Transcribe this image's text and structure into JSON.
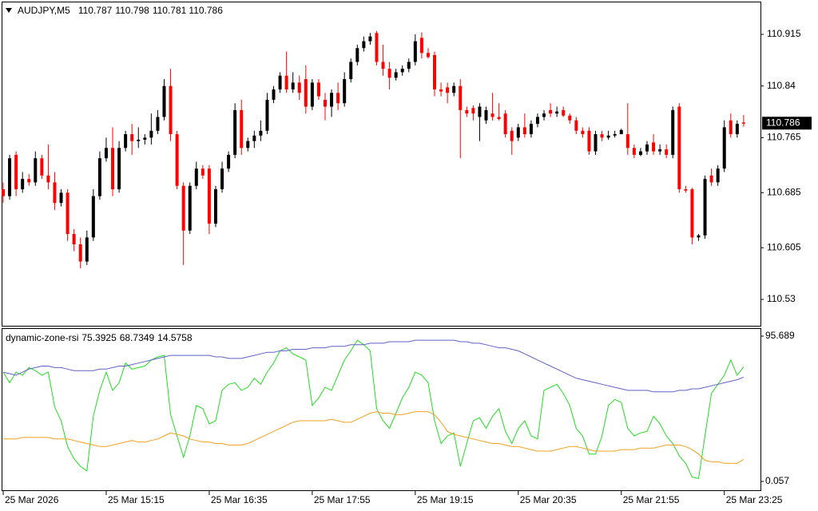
{
  "chart_data": [
    {
      "type": "candlestick",
      "title": "AUDJPY,M5",
      "ylim": [
        110.4917,
        110.9626
      ],
      "yticks": [
        110.53,
        110.605,
        110.685,
        110.765,
        110.84,
        110.915
      ],
      "xticks": [
        {
          "value": 0,
          "label": "25 Mar 2026"
        },
        {
          "value": 16,
          "label": "25 Mar 15:15"
        },
        {
          "value": 32,
          "label": "25 Mar 16:35"
        },
        {
          "value": 48,
          "label": "25 Mar 17:55"
        },
        {
          "value": 64,
          "label": "25 Mar 19:15"
        },
        {
          "value": 80,
          "label": "25 Mar 20:35"
        },
        {
          "value": 96,
          "label": "25 Mar 21:55"
        },
        {
          "value": 112,
          "label": "25 Mar 23:25"
        }
      ],
      "up_color": "#000000",
      "down_color": "#ff0000",
      "ohlc": [
        [
          110.69,
          110.7,
          110.67,
          110.68
        ],
        [
          110.68,
          110.74,
          110.675,
          110.735
        ],
        [
          110.74,
          110.745,
          110.68,
          110.69
        ],
        [
          110.69,
          110.715,
          110.685,
          110.705
        ],
        [
          110.705,
          110.712,
          110.695,
          110.7
        ],
        [
          110.7,
          110.745,
          110.695,
          110.735
        ],
        [
          110.735,
          110.74,
          110.705,
          110.71
        ],
        [
          110.71,
          110.755,
          110.69,
          110.7
        ],
        [
          110.7,
          110.715,
          110.66,
          110.67
        ],
        [
          110.67,
          110.69,
          110.665,
          110.685
        ],
        [
          110.685,
          110.69,
          110.615,
          110.625
        ],
        [
          110.625,
          110.632,
          110.6,
          110.61
        ],
        [
          110.61,
          110.62,
          110.575,
          110.585
        ],
        [
          110.585,
          110.63,
          110.58,
          110.62
        ],
        [
          110.62,
          110.69,
          110.615,
          110.68
        ],
        [
          110.68,
          110.745,
          110.675,
          110.735
        ],
        [
          110.735,
          110.765,
          110.73,
          110.75
        ],
        [
          110.75,
          110.78,
          110.68,
          110.69
        ],
        [
          110.69,
          110.76,
          110.685,
          110.75
        ],
        [
          110.75,
          110.775,
          110.745,
          110.77
        ],
        [
          110.77,
          110.785,
          110.74,
          110.76
        ],
        [
          110.76,
          110.78,
          110.75,
          110.762
        ],
        [
          110.762,
          110.77,
          110.755,
          110.765
        ],
        [
          110.765,
          110.8,
          110.755,
          110.775
        ],
        [
          110.775,
          110.805,
          110.77,
          110.795
        ],
        [
          110.795,
          110.85,
          110.79,
          110.84
        ],
        [
          110.84,
          110.865,
          110.76,
          110.77
        ],
        [
          110.77,
          110.775,
          110.69,
          110.695
        ],
        [
          110.695,
          110.7,
          110.58,
          110.63
        ],
        [
          110.63,
          110.7,
          110.625,
          110.695
        ],
        [
          110.695,
          110.73,
          110.69,
          110.72
        ],
        [
          110.72,
          110.725,
          110.705,
          110.71
        ],
        [
          110.72,
          110.725,
          110.625,
          110.64
        ],
        [
          110.64,
          110.695,
          110.635,
          110.69
        ],
        [
          110.69,
          110.73,
          110.685,
          110.72
        ],
        [
          110.72,
          110.745,
          110.715,
          110.74
        ],
        [
          110.74,
          110.815,
          110.735,
          110.805
        ],
        [
          110.805,
          110.82,
          110.74,
          110.75
        ],
        [
          110.75,
          110.765,
          110.745,
          110.76
        ],
        [
          110.76,
          110.775,
          110.75,
          110.768
        ],
        [
          110.768,
          110.79,
          110.76,
          110.775
        ],
        [
          110.775,
          110.83,
          110.77,
          110.82
        ],
        [
          110.82,
          110.84,
          110.815,
          110.835
        ],
        [
          110.835,
          110.86,
          110.83,
          110.855
        ],
        [
          110.855,
          110.89,
          110.83,
          110.835
        ],
        [
          110.835,
          110.86,
          110.83,
          110.845
        ],
        [
          110.845,
          110.855,
          110.82,
          110.83
        ],
        [
          110.85,
          110.87,
          110.8,
          110.81
        ],
        [
          110.81,
          110.85,
          110.805,
          110.845
        ],
        [
          110.845,
          110.85,
          110.82,
          110.825
        ],
        [
          110.82,
          110.83,
          110.79,
          110.81
        ],
        [
          110.81,
          110.835,
          110.795,
          110.83
        ],
        [
          110.83,
          110.845,
          110.805,
          110.815
        ],
        [
          110.815,
          110.86,
          110.81,
          110.85
        ],
        [
          110.85,
          110.88,
          110.845,
          110.875
        ],
        [
          110.875,
          110.9,
          110.87,
          110.895
        ],
        [
          110.895,
          110.912,
          110.89,
          110.905
        ],
        [
          110.905,
          110.917,
          110.9,
          110.912
        ],
        [
          110.917,
          110.92,
          110.87,
          110.875
        ],
        [
          110.875,
          110.9,
          110.855,
          110.865
        ],
        [
          110.865,
          110.875,
          110.835,
          110.852
        ],
        [
          110.852,
          110.865,
          110.848,
          110.86
        ],
        [
          110.86,
          110.87,
          110.855,
          110.865
        ],
        [
          110.865,
          110.88,
          110.86,
          110.875
        ],
        [
          110.875,
          110.915,
          110.87,
          110.905
        ],
        [
          110.91,
          110.918,
          110.88,
          110.888
        ],
        [
          110.888,
          110.895,
          110.88,
          110.882
        ],
        [
          110.885,
          110.89,
          110.825,
          110.835
        ],
        [
          110.835,
          110.845,
          110.825,
          110.832
        ],
        [
          110.838,
          110.845,
          110.815,
          110.83
        ],
        [
          110.83,
          110.845,
          110.825,
          110.84
        ],
        [
          110.84,
          110.85,
          110.735,
          110.805
        ],
        [
          110.805,
          110.81,
          110.795,
          110.8
        ],
        [
          110.808,
          110.812,
          110.79,
          110.8
        ],
        [
          110.795,
          110.815,
          110.76,
          110.81
        ],
        [
          110.79,
          110.81,
          110.785,
          110.805
        ],
        [
          110.8,
          110.83,
          110.79,
          110.795
        ],
        [
          110.795,
          110.815,
          110.79,
          110.792
        ],
        [
          110.8,
          110.805,
          110.765,
          110.77
        ],
        [
          110.775,
          110.78,
          110.74,
          110.76
        ],
        [
          110.765,
          110.785,
          110.76,
          110.78
        ],
        [
          110.78,
          110.8,
          110.765,
          110.77
        ],
        [
          110.77,
          110.79,
          110.765,
          110.785
        ],
        [
          110.785,
          110.8,
          110.78,
          110.795
        ],
        [
          110.795,
          110.805,
          110.79,
          110.8
        ],
        [
          110.805,
          110.815,
          110.795,
          110.8
        ],
        [
          110.8,
          110.81,
          110.795,
          110.803
        ],
        [
          110.805,
          110.81,
          110.795,
          110.797
        ],
        [
          110.797,
          110.8,
          110.785,
          110.79
        ],
        [
          110.79,
          110.795,
          110.77,
          110.775
        ],
        [
          110.775,
          110.78,
          110.765,
          110.77
        ],
        [
          110.775,
          110.78,
          110.74,
          110.745
        ],
        [
          110.745,
          110.775,
          110.74,
          110.77
        ],
        [
          110.77,
          110.775,
          110.76,
          110.765
        ],
        [
          110.765,
          110.775,
          110.762,
          110.768
        ],
        [
          110.768,
          110.775,
          110.765,
          110.77
        ],
        [
          110.77,
          110.778,
          110.77,
          110.776
        ],
        [
          110.77,
          110.815,
          110.74,
          110.75
        ],
        [
          110.75,
          110.755,
          110.735,
          110.74
        ],
        [
          110.74,
          110.75,
          110.738,
          110.745
        ],
        [
          110.745,
          110.76,
          110.74,
          110.755
        ],
        [
          110.758,
          110.77,
          110.74,
          110.745
        ],
        [
          110.745,
          110.755,
          110.74,
          110.748
        ],
        [
          110.748,
          110.755,
          110.735,
          110.74
        ],
        [
          110.74,
          110.81,
          110.735,
          110.805
        ],
        [
          110.81,
          110.815,
          110.685,
          110.69
        ],
        [
          110.69,
          110.695,
          110.685,
          110.688
        ],
        [
          110.69,
          110.692,
          110.61,
          110.62
        ],
        [
          110.62,
          110.625,
          110.615,
          110.623
        ],
        [
          110.623,
          110.71,
          110.618,
          110.705
        ],
        [
          110.71,
          110.72,
          110.695,
          110.7
        ],
        [
          110.7,
          110.725,
          110.695,
          110.72
        ],
        [
          110.72,
          110.79,
          110.715,
          110.78
        ],
        [
          110.79,
          110.8,
          110.765,
          110.77
        ],
        [
          110.77,
          110.79,
          110.765,
          110.785
        ],
        [
          110.787,
          110.798,
          110.781,
          110.786
        ]
      ]
    },
    {
      "type": "line",
      "title": "dynamic-zone-rsi",
      "ylim": [
        -6.25,
        100.94
      ],
      "yticks": [
        0.057,
        95.689
      ],
      "series": [
        {
          "color": "#22dd22",
          "values": [
            72,
            65,
            72,
            70,
            75,
            73,
            70,
            72,
            49,
            40,
            23,
            15,
            10,
            7,
            43,
            60,
            72,
            60,
            65,
            78,
            74,
            75,
            76,
            80,
            82,
            83,
            44,
            30,
            16,
            30,
            50,
            48,
            38,
            40,
            60,
            64,
            65,
            60,
            62,
            68,
            64,
            72,
            78,
            86,
            88,
            84,
            82,
            80,
            50,
            55,
            62,
            60,
            70,
            80,
            86,
            93,
            90,
            86,
            48,
            40,
            35,
            45,
            55,
            62,
            72,
            70,
            65,
            40,
            25,
            30,
            32,
            10,
            25,
            40,
            42,
            35,
            43,
            48,
            33,
            25,
            35,
            40,
            30,
            28,
            60,
            62,
            64,
            58,
            50,
            35,
            30,
            18,
            18,
            30,
            50,
            54,
            52,
            35,
            30,
            32,
            33,
            43,
            38,
            30,
            25,
            17,
            12,
            3,
            2,
            30,
            58,
            64,
            70,
            80,
            70,
            75.3925
          ]
        },
        {
          "color": "#6060c8",
          "values": [
            72,
            71,
            70,
            72,
            74,
            75,
            76,
            76,
            75,
            75,
            74,
            73,
            73,
            73,
            73,
            74,
            74,
            75,
            76,
            76,
            77,
            78,
            79,
            80,
            81,
            82,
            83,
            83,
            83,
            83,
            83,
            83,
            83,
            82,
            82,
            81,
            81,
            81,
            82,
            83,
            84,
            85,
            85,
            86,
            86,
            87,
            87,
            87,
            88,
            88,
            88,
            89,
            89,
            89,
            90,
            90,
            90,
            91,
            91,
            91,
            92,
            92,
            92,
            92,
            93,
            93,
            93,
            93,
            93,
            93,
            93,
            92,
            92,
            91,
            91,
            90,
            89,
            88,
            88,
            87,
            86,
            84,
            82,
            80,
            78,
            76,
            74,
            72,
            70,
            68,
            67,
            66,
            65,
            64,
            63,
            62,
            61,
            60,
            60,
            60,
            60,
            59,
            59,
            59,
            59,
            60,
            60,
            61,
            61,
            62,
            63,
            64,
            65,
            66,
            67,
            68.7349
          ]
        },
        {
          "color": "#f0a020",
          "values": [
            28,
            28,
            28,
            29,
            29,
            29,
            29,
            29,
            28,
            28,
            28,
            27,
            26,
            25,
            24,
            23,
            23,
            24,
            25,
            26,
            27,
            26,
            26,
            27,
            28,
            30,
            32,
            31,
            30,
            28,
            27,
            26,
            26,
            25,
            25,
            24,
            24,
            24,
            25,
            27,
            29,
            31,
            33,
            35,
            37,
            39,
            40,
            40,
            40,
            40,
            40,
            41,
            40,
            39,
            39,
            41,
            43,
            45,
            46,
            45,
            45,
            44,
            44,
            45,
            46,
            46,
            46,
            44,
            39,
            33,
            31,
            30,
            29,
            28,
            27,
            26,
            25,
            25,
            24,
            23,
            23,
            22,
            21,
            20,
            20,
            20,
            21,
            22,
            23,
            23,
            22,
            21,
            20,
            20,
            20,
            20,
            21,
            21,
            21,
            22,
            22,
            22,
            23,
            24,
            24,
            24,
            23,
            21,
            18,
            14,
            13,
            13,
            12,
            12,
            12,
            14.5758
          ]
        }
      ]
    }
  ]
}
